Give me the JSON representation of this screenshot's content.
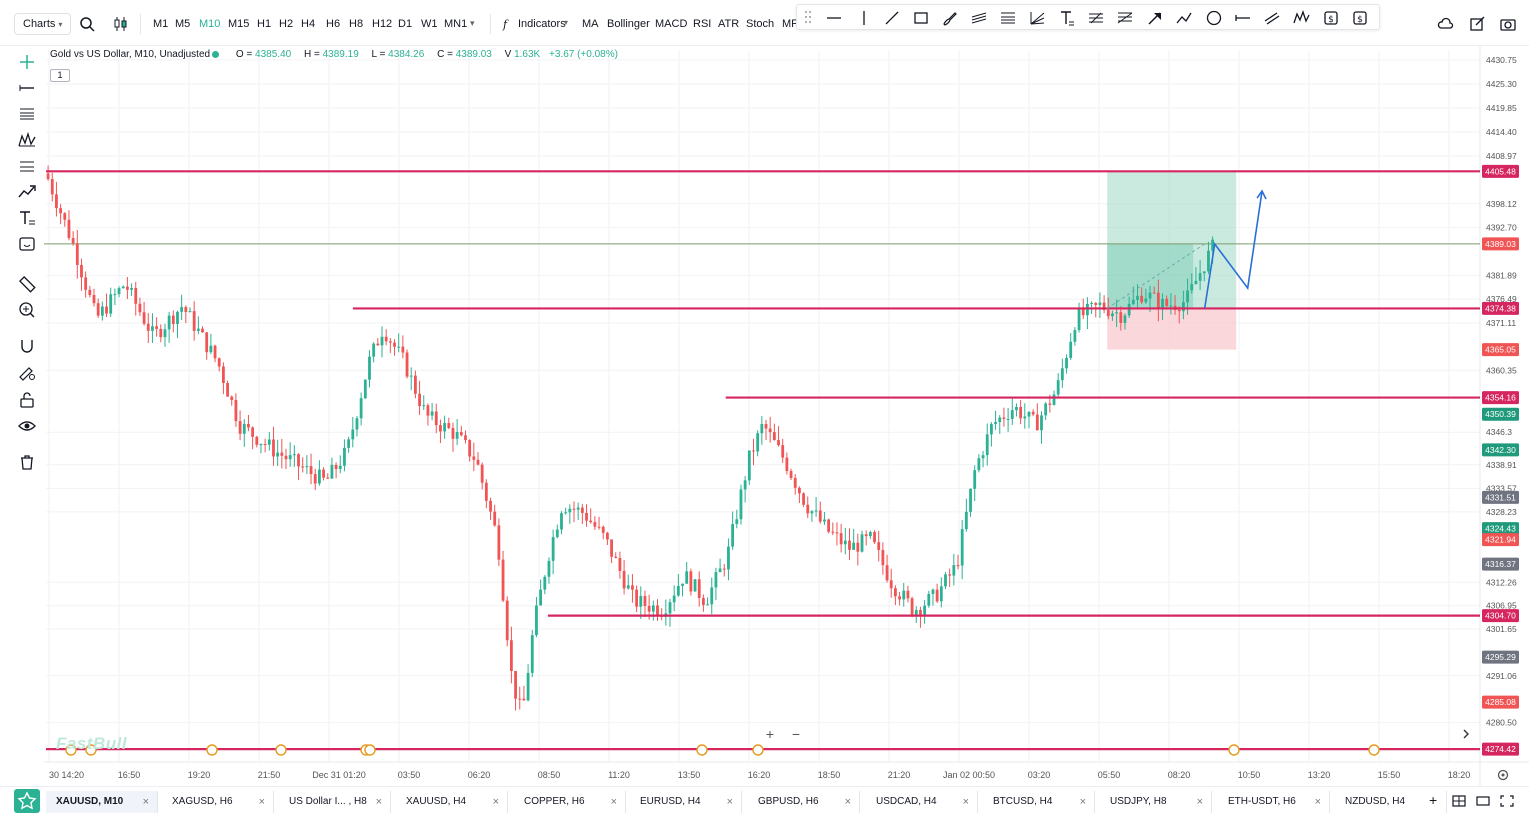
{
  "toolbar": {
    "charts_label": "Charts",
    "timeframes": [
      "M1",
      "M5",
      "M10",
      "M15",
      "H1",
      "H2",
      "H4",
      "H6",
      "H8",
      "H12",
      "D1",
      "W1",
      "MN1"
    ],
    "active_timeframe": "M10",
    "indicators_label": "Indicators",
    "indicator_shortcuts": [
      "MA",
      "Bollinger",
      "MACD",
      "RSI",
      "ATR",
      "Stoch",
      "MF"
    ]
  },
  "legend": {
    "title": "Gold vs US Dollar, M10, Unadjusted",
    "open_label": "O =",
    "open": "4385.40",
    "high_label": "H =",
    "high": "4389.19",
    "low_label": "L =",
    "low": "4384.26",
    "close_label": "C =",
    "close": "4389.03",
    "volume_label": "V",
    "volume": "1.63K",
    "change": "+3.67 (+0.08%)",
    "sub_indicator": "1"
  },
  "watermark": "FastBull",
  "colors": {
    "accent": "#2bb193",
    "up": "#2bb193",
    "down": "#f05454",
    "level_line": "#d6265f",
    "tp_zone": "#9fd8c7",
    "sl_zone": "#f8c9cf",
    "arrow": "#2a6fd6"
  },
  "chart_data": {
    "type": "candlestick",
    "symbol": "XAUUSD",
    "timeframe": "M10",
    "ylim": [
      4271.5,
      4433.0
    ],
    "y_ticks": [
      "4430.75",
      "4425.30",
      "4419.85",
      "4414.40",
      "4408.97",
      "4398.12",
      "4392.70",
      "4381.89",
      "4376.49",
      "4371.11",
      "4360.35",
      "4346.3",
      "4338.91",
      "4333.57",
      "4328.23",
      "4312.26",
      "4306.95",
      "4301.65",
      "4291.06",
      "4280.50"
    ],
    "price_tags": [
      {
        "value": "4405.48",
        "kind": "level"
      },
      {
        "value": "4389.03",
        "kind": "current"
      },
      {
        "value": "4374.38",
        "kind": "level"
      },
      {
        "value": "4365.05",
        "kind": "down"
      },
      {
        "value": "4354.16",
        "kind": "level"
      },
      {
        "value": "4350.39",
        "kind": "up"
      },
      {
        "value": "4342.30",
        "kind": "up"
      },
      {
        "value": "4331.51",
        "kind": "gray"
      },
      {
        "value": "4324.43",
        "kind": "up"
      },
      {
        "value": "4321.94",
        "kind": "down"
      },
      {
        "value": "4316.37",
        "kind": "gray"
      },
      {
        "value": "4304.70",
        "kind": "level"
      },
      {
        "value": "4295.29",
        "kind": "gray"
      },
      {
        "value": "4285.08",
        "kind": "down"
      },
      {
        "value": "4274.42",
        "kind": "level"
      }
    ],
    "x_ticks": [
      "30 14:20",
      "16:50",
      "19:20",
      "21:50",
      "Dec 31 01:20",
      "03:50",
      "06:20",
      "08:50",
      "11:20",
      "13:50",
      "16:20",
      "18:50",
      "21:20",
      "Jan 02 00:50",
      "03:20",
      "05:50",
      "08:20",
      "10:50",
      "13:20",
      "15:50",
      "18:20"
    ],
    "horizontal_levels": [
      4405.48,
      4374.38,
      4354.16,
      4304.7,
      4274.42
    ],
    "current_price": 4389.03,
    "position": {
      "entry": 4374.38,
      "take_profit": 4405.48,
      "stop_loss": 4365.05
    },
    "path": [
      {
        "t": 0.0,
        "p": 4405
      },
      {
        "t": 0.02,
        "p": 4388
      },
      {
        "t": 0.035,
        "p": 4372
      },
      {
        "t": 0.055,
        "p": 4380
      },
      {
        "t": 0.075,
        "p": 4368
      },
      {
        "t": 0.095,
        "p": 4375
      },
      {
        "t": 0.12,
        "p": 4362
      },
      {
        "t": 0.135,
        "p": 4348
      },
      {
        "t": 0.16,
        "p": 4342
      },
      {
        "t": 0.18,
        "p": 4338
      },
      {
        "t": 0.195,
        "p": 4335
      },
      {
        "t": 0.21,
        "p": 4342
      },
      {
        "t": 0.225,
        "p": 4362
      },
      {
        "t": 0.235,
        "p": 4370
      },
      {
        "t": 0.25,
        "p": 4362
      },
      {
        "t": 0.265,
        "p": 4350
      },
      {
        "t": 0.285,
        "p": 4346
      },
      {
        "t": 0.3,
        "p": 4340
      },
      {
        "t": 0.315,
        "p": 4322
      },
      {
        "t": 0.325,
        "p": 4290
      },
      {
        "t": 0.332,
        "p": 4282
      },
      {
        "t": 0.34,
        "p": 4302
      },
      {
        "t": 0.35,
        "p": 4318
      },
      {
        "t": 0.36,
        "p": 4330
      },
      {
        "t": 0.375,
        "p": 4328
      },
      {
        "t": 0.39,
        "p": 4322
      },
      {
        "t": 0.41,
        "p": 4308
      },
      {
        "t": 0.43,
        "p": 4306
      },
      {
        "t": 0.445,
        "p": 4314
      },
      {
        "t": 0.46,
        "p": 4308
      },
      {
        "t": 0.475,
        "p": 4318
      },
      {
        "t": 0.49,
        "p": 4340
      },
      {
        "t": 0.5,
        "p": 4348
      },
      {
        "t": 0.515,
        "p": 4340
      },
      {
        "t": 0.53,
        "p": 4330
      },
      {
        "t": 0.545,
        "p": 4324
      },
      {
        "t": 0.56,
        "p": 4320
      },
      {
        "t": 0.575,
        "p": 4322
      },
      {
        "t": 0.59,
        "p": 4312
      },
      {
        "t": 0.605,
        "p": 4306
      },
      {
        "t": 0.62,
        "p": 4309
      },
      {
        "t": 0.635,
        "p": 4316
      },
      {
        "t": 0.648,
        "p": 4338
      },
      {
        "t": 0.66,
        "p": 4348
      },
      {
        "t": 0.675,
        "p": 4352
      },
      {
        "t": 0.69,
        "p": 4348
      },
      {
        "t": 0.705,
        "p": 4356
      },
      {
        "t": 0.718,
        "p": 4372
      },
      {
        "t": 0.735,
        "p": 4375
      },
      {
        "t": 0.75,
        "p": 4373
      },
      {
        "t": 0.765,
        "p": 4378
      },
      {
        "t": 0.78,
        "p": 4375
      },
      {
        "t": 0.795,
        "p": 4376
      },
      {
        "t": 0.81,
        "p": 4386
      },
      {
        "t": 0.815,
        "p": 4389
      }
    ]
  },
  "tabs": [
    {
      "label": "XAUUSD, M10",
      "active": true
    },
    {
      "label": "XAGUSD, H6",
      "active": false
    },
    {
      "label": "US Dollar I... , H8",
      "active": false
    },
    {
      "label": "XAUUSD, H4",
      "active": false
    },
    {
      "label": "COPPER, H6",
      "active": false
    },
    {
      "label": "EURUSD, H4",
      "active": false
    },
    {
      "label": "GBPUSD, H6",
      "active": false
    },
    {
      "label": "USDCAD, H4",
      "active": false
    },
    {
      "label": "BTCUSD, H4",
      "active": false
    },
    {
      "label": "USDJPY, H8",
      "active": false
    },
    {
      "label": "ETH-USDT, H6",
      "active": false
    },
    {
      "label": "NZDUSD, H4",
      "active": false
    }
  ]
}
